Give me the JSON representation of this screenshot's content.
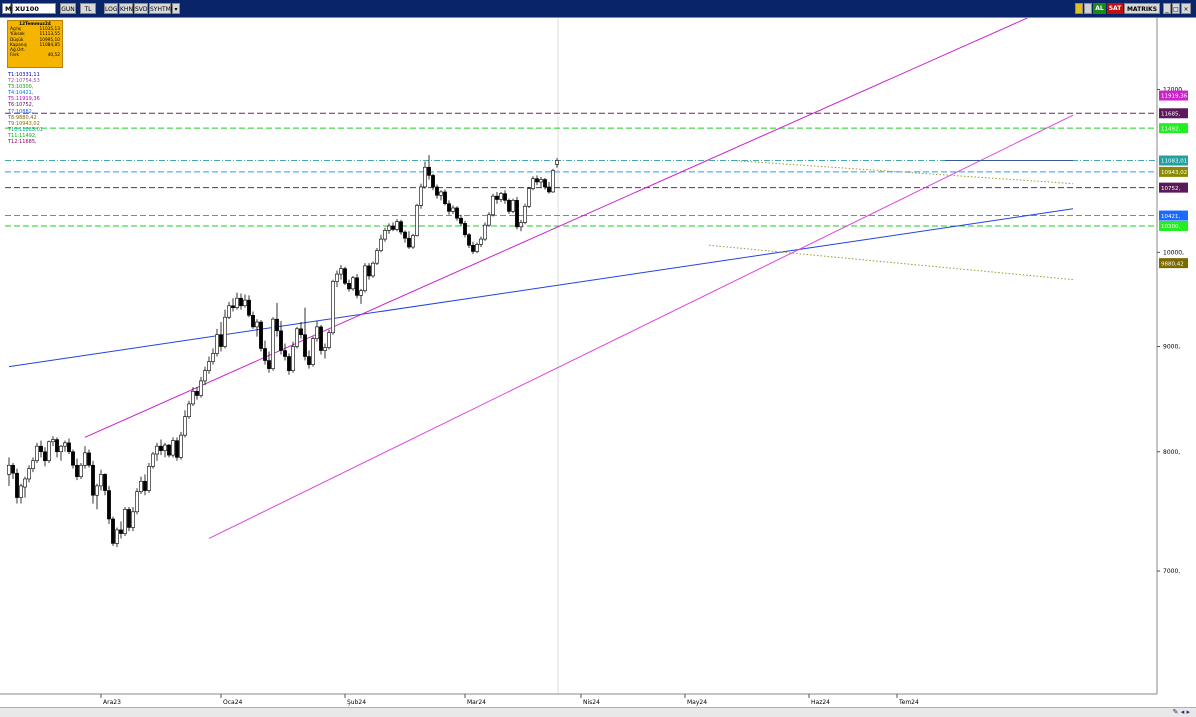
{
  "toolbar": {
    "mode": "M",
    "symbol": "XU100",
    "period": "GUN",
    "btn_tl": "TL",
    "btn_log": "LOG",
    "btn_khn": "KHN",
    "btn_svd": "SVD",
    "btn_syh": "SYHTMP",
    "btn_al": "AL",
    "btn_sat": "SAT",
    "btn_matriks": "MATRIKS"
  },
  "ohlc_box": {
    "date": "12Temmuz24",
    "rows": [
      {
        "label": "Açılış",
        "value": "11035,13"
      },
      {
        "label": "Yüksek",
        "value": "11113,55"
      },
      {
        "label": "Düşük",
        "value": "10995,10"
      },
      {
        "label": "Kapanış",
        "value": "11084,85"
      },
      {
        "label": "Ağ.Ort.",
        "value": ""
      },
      {
        "label": "Fark",
        "value": "40,52"
      }
    ]
  },
  "levels": [
    {
      "text": "T1:10331,11",
      "color": "#0000c8"
    },
    {
      "text": "T2:10754,53",
      "color": "#9a4a9a"
    },
    {
      "text": "T3:10300,",
      "color": "#10a010"
    },
    {
      "text": "T4:10421,",
      "color": "#0070ff"
    },
    {
      "text": "T5:11919,36",
      "color": "#c000c0"
    },
    {
      "text": "T6:10752,",
      "color": "#600060"
    },
    {
      "text": "T7:10882,",
      "color": "#2060ff"
    },
    {
      "text": "T8:9880,42",
      "color": "#806000"
    },
    {
      "text": "T9:10943,02",
      "color": "#807000"
    },
    {
      "text": "T10:11083,01",
      "color": "#00a0a0"
    },
    {
      "text": "T11:11492,",
      "color": "#00b000"
    },
    {
      "text": "T12:11685,",
      "color": "#800060"
    }
  ],
  "price_tags": [
    {
      "value": "11919,36",
      "bg": "#cc22cc",
      "fg": "#ffffff"
    },
    {
      "value": "11685,",
      "bg": "#5a1a5a",
      "fg": "#ffffff"
    },
    {
      "value": "11492,",
      "bg": "#22ee22",
      "fg": "#ffffff"
    },
    {
      "value": "11083,01",
      "bg": "#22a0a0",
      "fg": "#ffffff"
    },
    {
      "value": "10943,02",
      "bg": "#8a8a00",
      "fg": "#ffffff"
    },
    {
      "value": "10752,",
      "bg": "#5a1a5a",
      "fg": "#ffffff"
    },
    {
      "value": "10421,",
      "bg": "#1a6aff",
      "fg": "#ffffff"
    },
    {
      "value": "10300,",
      "bg": "#22ee22",
      "fg": "#ffffff"
    },
    {
      "value": "9880,42",
      "bg": "#7a6a00",
      "fg": "#ffffff"
    }
  ],
  "chart_data": {
    "type": "candlestick",
    "y_scale": "log",
    "ylim": [
      6100,
      13000
    ],
    "y_ticks": [
      {
        "value": 12000,
        "label": "12000,"
      },
      {
        "value": 10000,
        "label": "10000,"
      },
      {
        "value": 9000,
        "label": "9000,"
      },
      {
        "value": 8000,
        "label": "8000,"
      },
      {
        "value": 7000,
        "label": "7000,"
      }
    ],
    "x_ticks": [
      {
        "label": "Ara23",
        "index": 23
      },
      {
        "label": "Oca24",
        "index": 53
      },
      {
        "label": "Şub24",
        "index": 84
      },
      {
        "label": "Mar24",
        "index": 114
      },
      {
        "label": "Nis24",
        "index": 143
      },
      {
        "label": "May24",
        "index": 169
      },
      {
        "label": "Haz24",
        "index": 200
      },
      {
        "label": "Tem24",
        "index": 222
      }
    ],
    "horizontal_levels": [
      {
        "value": 11685,
        "color": "#6a2a6a",
        "style": "dash"
      },
      {
        "value": 11492,
        "color": "#22cc22",
        "style": "dash"
      },
      {
        "value": 11083.01,
        "color": "#44aaaa",
        "style": "dashdot"
      },
      {
        "value": 10943.02,
        "color": "#3399ff",
        "style": "dash"
      },
      {
        "value": 10752,
        "color": "#6a2a6a",
        "style": "dash"
      },
      {
        "value": 10421,
        "color": "#3399ff",
        "style": "dash"
      },
      {
        "value": 10300,
        "color": "#22cc22",
        "style": "dash"
      }
    ],
    "trend_lines": [
      {
        "from": [
          0,
          8800
        ],
        "to": [
          266,
          10500
        ],
        "color": "#2244dd",
        "style": "solid"
      },
      {
        "from": [
          19,
          8130
        ],
        "to": [
          266,
          13300
        ],
        "color": "#cc22cc",
        "style": "solid"
      },
      {
        "from": [
          50,
          7260
        ],
        "to": [
          266,
          11660
        ],
        "color": "#dd44dd",
        "style": "solid"
      },
      {
        "from": [
          182,
          11080
        ],
        "to": [
          266,
          10800
        ],
        "color": "#999933",
        "style": "dot"
      },
      {
        "from": [
          175,
          10080
        ],
        "to": [
          266,
          9700
        ],
        "color": "#999933",
        "style": "dot"
      },
      {
        "from": [
          234,
          11083
        ],
        "to": [
          266,
          11083
        ],
        "color": "#3a5a9a",
        "style": "solid"
      }
    ],
    "candles": [
      {
        "o": 7800,
        "h": 7950,
        "l": 7700,
        "c": 7880
      },
      {
        "o": 7880,
        "h": 7900,
        "l": 7760,
        "c": 7810
      },
      {
        "o": 7810,
        "h": 7850,
        "l": 7550,
        "c": 7600
      },
      {
        "o": 7600,
        "h": 7720,
        "l": 7550,
        "c": 7700
      },
      {
        "o": 7690,
        "h": 7780,
        "l": 7600,
        "c": 7760
      },
      {
        "o": 7760,
        "h": 7880,
        "l": 7730,
        "c": 7850
      },
      {
        "o": 7850,
        "h": 7950,
        "l": 7820,
        "c": 7920
      },
      {
        "o": 7920,
        "h": 8080,
        "l": 7900,
        "c": 8050
      },
      {
        "o": 8050,
        "h": 8100,
        "l": 7950,
        "c": 8000
      },
      {
        "o": 8000,
        "h": 8040,
        "l": 7870,
        "c": 7920
      },
      {
        "o": 7920,
        "h": 8100,
        "l": 7900,
        "c": 8090
      },
      {
        "o": 8090,
        "h": 8140,
        "l": 8050,
        "c": 8110
      },
      {
        "o": 8110,
        "h": 8130,
        "l": 7950,
        "c": 8000
      },
      {
        "o": 8000,
        "h": 8060,
        "l": 7920,
        "c": 8050
      },
      {
        "o": 8050,
        "h": 8100,
        "l": 8000,
        "c": 8080
      },
      {
        "o": 8080,
        "h": 8120,
        "l": 7980,
        "c": 8000
      },
      {
        "o": 8000,
        "h": 8020,
        "l": 7850,
        "c": 7880
      },
      {
        "o": 7880,
        "h": 7940,
        "l": 7750,
        "c": 7780
      },
      {
        "o": 7780,
        "h": 7900,
        "l": 7760,
        "c": 7880
      },
      {
        "o": 7880,
        "h": 8050,
        "l": 7850,
        "c": 7990
      },
      {
        "o": 7990,
        "h": 8020,
        "l": 7860,
        "c": 7880
      },
      {
        "o": 7880,
        "h": 7920,
        "l": 7550,
        "c": 7620
      },
      {
        "o": 7620,
        "h": 7720,
        "l": 7500,
        "c": 7700
      },
      {
        "o": 7700,
        "h": 7840,
        "l": 7660,
        "c": 7800
      },
      {
        "o": 7800,
        "h": 7810,
        "l": 7620,
        "c": 7660
      },
      {
        "o": 7660,
        "h": 7700,
        "l": 7380,
        "c": 7420
      },
      {
        "o": 7420,
        "h": 7440,
        "l": 7200,
        "c": 7220
      },
      {
        "o": 7220,
        "h": 7350,
        "l": 7190,
        "c": 7330
      },
      {
        "o": 7330,
        "h": 7400,
        "l": 7260,
        "c": 7300
      },
      {
        "o": 7300,
        "h": 7520,
        "l": 7280,
        "c": 7500
      },
      {
        "o": 7500,
        "h": 7520,
        "l": 7320,
        "c": 7350
      },
      {
        "o": 7350,
        "h": 7520,
        "l": 7320,
        "c": 7480
      },
      {
        "o": 7480,
        "h": 7680,
        "l": 7460,
        "c": 7650
      },
      {
        "o": 7650,
        "h": 7780,
        "l": 7630,
        "c": 7740
      },
      {
        "o": 7740,
        "h": 7800,
        "l": 7620,
        "c": 7660
      },
      {
        "o": 7660,
        "h": 7900,
        "l": 7640,
        "c": 7870
      },
      {
        "o": 7870,
        "h": 8000,
        "l": 7850,
        "c": 7980
      },
      {
        "o": 7980,
        "h": 8080,
        "l": 7920,
        "c": 8050
      },
      {
        "o": 8050,
        "h": 8110,
        "l": 7970,
        "c": 8010
      },
      {
        "o": 8010,
        "h": 8080,
        "l": 7950,
        "c": 8060
      },
      {
        "o": 8060,
        "h": 8070,
        "l": 7950,
        "c": 7970
      },
      {
        "o": 7970,
        "h": 8130,
        "l": 7950,
        "c": 8100
      },
      {
        "o": 8100,
        "h": 8130,
        "l": 7920,
        "c": 7950
      },
      {
        "o": 7950,
        "h": 8180,
        "l": 7930,
        "c": 8150
      },
      {
        "o": 8150,
        "h": 8380,
        "l": 8130,
        "c": 8320
      },
      {
        "o": 8320,
        "h": 8470,
        "l": 8300,
        "c": 8440
      },
      {
        "o": 8440,
        "h": 8600,
        "l": 8420,
        "c": 8560
      },
      {
        "o": 8560,
        "h": 8600,
        "l": 8480,
        "c": 8520
      },
      {
        "o": 8520,
        "h": 8700,
        "l": 8500,
        "c": 8660
      },
      {
        "o": 8660,
        "h": 8800,
        "l": 8620,
        "c": 8760
      },
      {
        "o": 8760,
        "h": 8900,
        "l": 8730,
        "c": 8850
      },
      {
        "o": 8850,
        "h": 8980,
        "l": 8820,
        "c": 8930
      },
      {
        "o": 8930,
        "h": 9180,
        "l": 8900,
        "c": 9120
      },
      {
        "o": 9120,
        "h": 9250,
        "l": 8950,
        "c": 9000
      },
      {
        "o": 9000,
        "h": 9380,
        "l": 8980,
        "c": 9300
      },
      {
        "o": 9300,
        "h": 9460,
        "l": 9280,
        "c": 9420
      },
      {
        "o": 9420,
        "h": 9500,
        "l": 9360,
        "c": 9400
      },
      {
        "o": 9400,
        "h": 9560,
        "l": 9380,
        "c": 9500
      },
      {
        "o": 9500,
        "h": 9550,
        "l": 9380,
        "c": 9420
      },
      {
        "o": 9420,
        "h": 9540,
        "l": 9400,
        "c": 9480
      },
      {
        "o": 9480,
        "h": 9530,
        "l": 9300,
        "c": 9320
      },
      {
        "o": 9320,
        "h": 9360,
        "l": 9180,
        "c": 9200
      },
      {
        "o": 9200,
        "h": 9280,
        "l": 9100,
        "c": 9250
      },
      {
        "o": 9250,
        "h": 9270,
        "l": 8950,
        "c": 8980
      },
      {
        "o": 8980,
        "h": 9060,
        "l": 8820,
        "c": 8860
      },
      {
        "o": 8860,
        "h": 8950,
        "l": 8740,
        "c": 8780
      },
      {
        "o": 8780,
        "h": 9300,
        "l": 8760,
        "c": 9280
      },
      {
        "o": 9280,
        "h": 9450,
        "l": 9100,
        "c": 9160
      },
      {
        "o": 9160,
        "h": 9260,
        "l": 8920,
        "c": 8960
      },
      {
        "o": 8960,
        "h": 9030,
        "l": 8860,
        "c": 8900
      },
      {
        "o": 8900,
        "h": 8930,
        "l": 8720,
        "c": 8760
      },
      {
        "o": 8760,
        "h": 9050,
        "l": 8740,
        "c": 9000
      },
      {
        "o": 9000,
        "h": 9200,
        "l": 8980,
        "c": 9180
      },
      {
        "o": 9180,
        "h": 9250,
        "l": 9080,
        "c": 9120
      },
      {
        "o": 9120,
        "h": 9400,
        "l": 8860,
        "c": 8900
      },
      {
        "o": 8900,
        "h": 8960,
        "l": 8780,
        "c": 8820
      },
      {
        "o": 8820,
        "h": 9100,
        "l": 8800,
        "c": 9080
      },
      {
        "o": 9080,
        "h": 9260,
        "l": 9050,
        "c": 9200
      },
      {
        "o": 9200,
        "h": 9220,
        "l": 8920,
        "c": 8960
      },
      {
        "o": 8960,
        "h": 9030,
        "l": 8880,
        "c": 8990
      },
      {
        "o": 8990,
        "h": 9170,
        "l": 8970,
        "c": 9140
      },
      {
        "o": 9140,
        "h": 9700,
        "l": 9120,
        "c": 9680
      },
      {
        "o": 9680,
        "h": 9800,
        "l": 9620,
        "c": 9760
      },
      {
        "o": 9760,
        "h": 9860,
        "l": 9700,
        "c": 9820
      },
      {
        "o": 9820,
        "h": 9840,
        "l": 9640,
        "c": 9660
      },
      {
        "o": 9660,
        "h": 9700,
        "l": 9570,
        "c": 9600
      },
      {
        "o": 9600,
        "h": 9740,
        "l": 9580,
        "c": 9720
      },
      {
        "o": 9720,
        "h": 9760,
        "l": 9500,
        "c": 9530
      },
      {
        "o": 9530,
        "h": 9600,
        "l": 9440,
        "c": 9580
      },
      {
        "o": 9580,
        "h": 9880,
        "l": 9560,
        "c": 9850
      },
      {
        "o": 9850,
        "h": 9880,
        "l": 9700,
        "c": 9740
      },
      {
        "o": 9740,
        "h": 9900,
        "l": 9720,
        "c": 9880
      },
      {
        "o": 9880,
        "h": 10050,
        "l": 9860,
        "c": 10020
      },
      {
        "o": 10020,
        "h": 10200,
        "l": 10000,
        "c": 10150
      },
      {
        "o": 10150,
        "h": 10280,
        "l": 10120,
        "c": 10250
      },
      {
        "o": 10250,
        "h": 10330,
        "l": 10210,
        "c": 10300
      },
      {
        "o": 10300,
        "h": 10340,
        "l": 10240,
        "c": 10260
      },
      {
        "o": 10260,
        "h": 10380,
        "l": 10240,
        "c": 10350
      },
      {
        "o": 10350,
        "h": 10370,
        "l": 10200,
        "c": 10230
      },
      {
        "o": 10230,
        "h": 10250,
        "l": 10110,
        "c": 10160
      },
      {
        "o": 10160,
        "h": 10240,
        "l": 10040,
        "c": 10060
      },
      {
        "o": 10060,
        "h": 10210,
        "l": 10040,
        "c": 10190
      },
      {
        "o": 10190,
        "h": 10560,
        "l": 10180,
        "c": 10540
      },
      {
        "o": 10540,
        "h": 10800,
        "l": 10500,
        "c": 10760
      },
      {
        "o": 10760,
        "h": 11070,
        "l": 10740,
        "c": 11000
      },
      {
        "o": 11000,
        "h": 11150,
        "l": 10850,
        "c": 10900
      },
      {
        "o": 10900,
        "h": 10920,
        "l": 10720,
        "c": 10760
      },
      {
        "o": 10760,
        "h": 10790,
        "l": 10620,
        "c": 10660
      },
      {
        "o": 10660,
        "h": 10720,
        "l": 10600,
        "c": 10700
      },
      {
        "o": 10700,
        "h": 10730,
        "l": 10540,
        "c": 10560
      },
      {
        "o": 10560,
        "h": 10600,
        "l": 10430,
        "c": 10470
      },
      {
        "o": 10470,
        "h": 10540,
        "l": 10440,
        "c": 10510
      },
      {
        "o": 10510,
        "h": 10530,
        "l": 10360,
        "c": 10390
      },
      {
        "o": 10390,
        "h": 10430,
        "l": 10300,
        "c": 10330
      },
      {
        "o": 10330,
        "h": 10360,
        "l": 10170,
        "c": 10200
      },
      {
        "o": 10200,
        "h": 10220,
        "l": 10050,
        "c": 10080
      },
      {
        "o": 10080,
        "h": 10120,
        "l": 9980,
        "c": 10010
      },
      {
        "o": 10010,
        "h": 10110,
        "l": 9990,
        "c": 10090
      },
      {
        "o": 10090,
        "h": 10180,
        "l": 10060,
        "c": 10150
      },
      {
        "o": 10150,
        "h": 10340,
        "l": 10130,
        "c": 10310
      },
      {
        "o": 10310,
        "h": 10460,
        "l": 10290,
        "c": 10430
      },
      {
        "o": 10430,
        "h": 10680,
        "l": 10410,
        "c": 10650
      },
      {
        "o": 10650,
        "h": 10700,
        "l": 10560,
        "c": 10610
      },
      {
        "o": 10610,
        "h": 10700,
        "l": 10580,
        "c": 10680
      },
      {
        "o": 10680,
        "h": 10720,
        "l": 10560,
        "c": 10600
      },
      {
        "o": 10600,
        "h": 10620,
        "l": 10440,
        "c": 10470
      },
      {
        "o": 10470,
        "h": 10620,
        "l": 10450,
        "c": 10600
      },
      {
        "o": 10600,
        "h": 10640,
        "l": 10260,
        "c": 10290
      },
      {
        "o": 10290,
        "h": 10370,
        "l": 10240,
        "c": 10340
      },
      {
        "o": 10340,
        "h": 10560,
        "l": 10320,
        "c": 10530
      },
      {
        "o": 10530,
        "h": 10760,
        "l": 10510,
        "c": 10740
      },
      {
        "o": 10740,
        "h": 10890,
        "l": 10720,
        "c": 10860
      },
      {
        "o": 10860,
        "h": 10900,
        "l": 10780,
        "c": 10820
      },
      {
        "o": 10820,
        "h": 10880,
        "l": 10760,
        "c": 10850
      },
      {
        "o": 10850,
        "h": 10870,
        "l": 10730,
        "c": 10760
      },
      {
        "o": 10760,
        "h": 10820,
        "l": 10680,
        "c": 10700
      },
      {
        "o": 10700,
        "h": 10980,
        "l": 10690,
        "c": 10960
      },
      {
        "o": 11035.13,
        "h": 11113.55,
        "l": 10995.1,
        "c": 11084.85
      }
    ]
  }
}
